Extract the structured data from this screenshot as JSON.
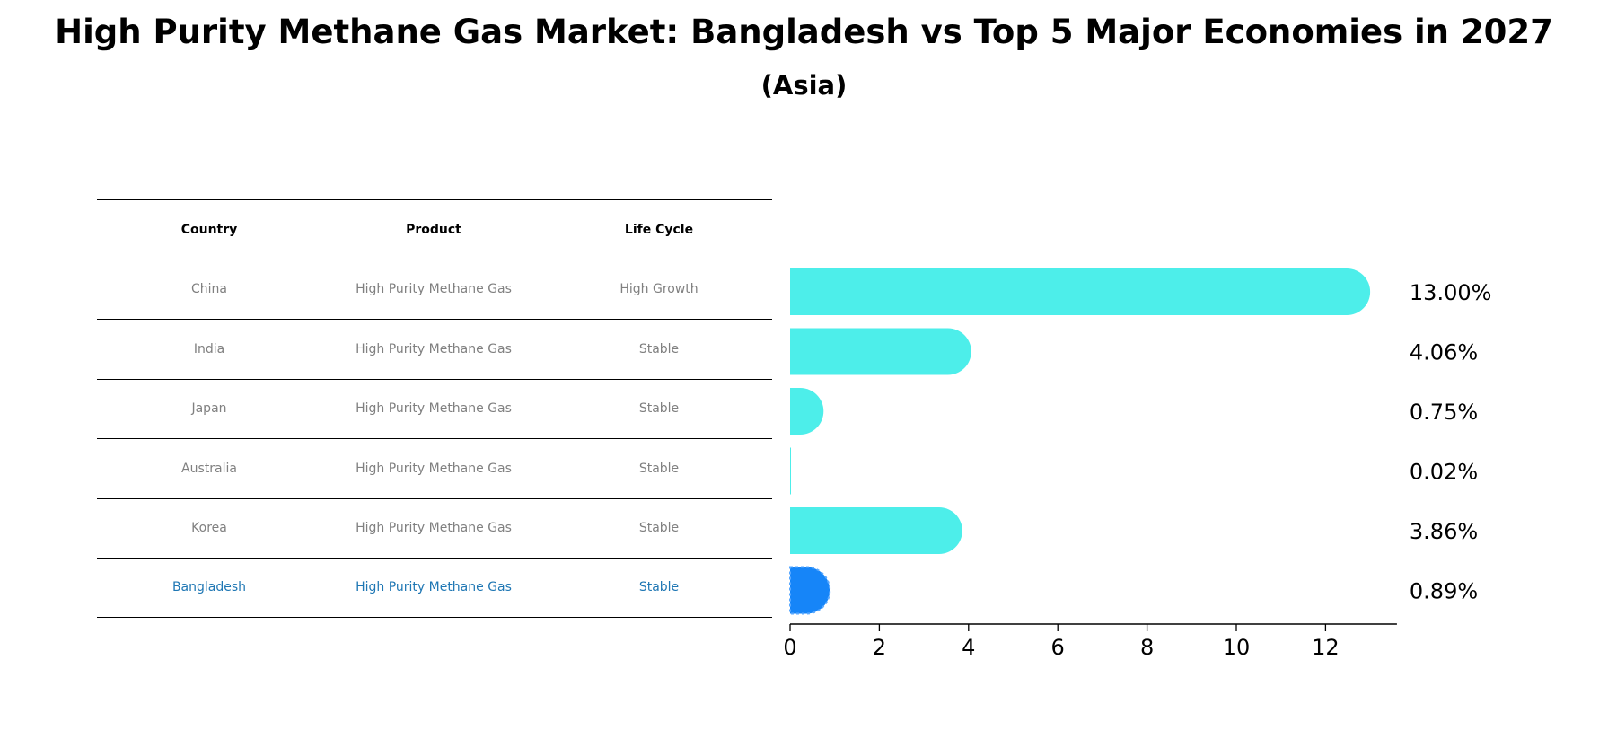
{
  "title": "High Purity Methane Gas Market: Bangladesh vs Top 5 Major Economies in 2027",
  "subtitle": "(Asia)",
  "table": {
    "headers": [
      "Country",
      "Product",
      "Life Cycle"
    ],
    "rows": [
      {
        "country": "China",
        "product": "High Purity Methane Gas",
        "life_cycle": "High Growth"
      },
      {
        "country": "India",
        "product": "High Purity Methane Gas",
        "life_cycle": "Stable"
      },
      {
        "country": "Japan",
        "product": "High Purity Methane Gas",
        "life_cycle": "Stable"
      },
      {
        "country": "Australia",
        "product": "High Purity Methane Gas",
        "life_cycle": "Stable"
      },
      {
        "country": "Korea",
        "product": "High Purity Methane Gas",
        "life_cycle": "Stable"
      },
      {
        "country": "Bangladesh",
        "product": "High Purity Methane Gas",
        "life_cycle": "Stable"
      }
    ],
    "highlight_color": "#1f77b4",
    "text_color": "#808080"
  },
  "chart_data": {
    "type": "bar",
    "orientation": "horizontal",
    "categories": [
      "China",
      "India",
      "Japan",
      "Australia",
      "Korea",
      "Bangladesh"
    ],
    "values": [
      13.0,
      4.06,
      0.75,
      0.02,
      3.86,
      0.89
    ],
    "value_labels": [
      "13.00%",
      "4.06%",
      "0.75%",
      "0.02%",
      "3.86%",
      "0.89%"
    ],
    "xlim": [
      0,
      13.6
    ],
    "xticks": [
      0,
      2,
      4,
      6,
      8,
      10,
      12
    ],
    "colors": [
      "#4deeea",
      "#4deeea",
      "#4deeea",
      "#4deeea",
      "#4deeea",
      "#1685f8"
    ],
    "highlight_index": 5,
    "grid": false
  }
}
